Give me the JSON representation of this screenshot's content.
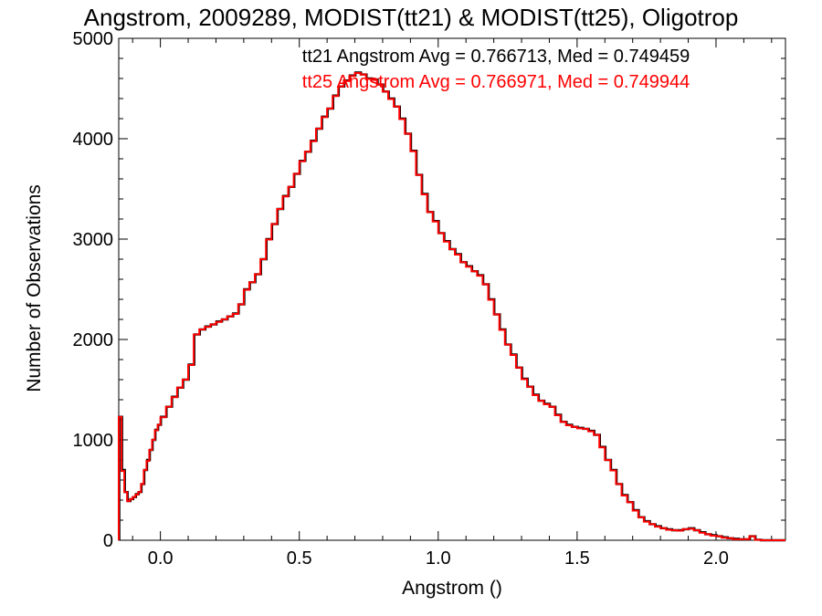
{
  "chart_data": {
    "type": "line",
    "title": "Angstrom, 2009289, MODIST(tt21) & MODIST(tt25), Oligotrop",
    "xlabel": "Angstrom ()",
    "ylabel": "Number of Observations",
    "xlim": [
      -0.15,
      2.25
    ],
    "ylim": [
      0,
      5000
    ],
    "x_ticks": [
      "0.0",
      "0.5",
      "1.0",
      "1.5",
      "2.0"
    ],
    "y_ticks": [
      "0",
      "1000",
      "2000",
      "3000",
      "4000",
      "5000"
    ],
    "grid": false,
    "annotations": [
      {
        "text": "tt21 Angstrom Avg = 0.766713, Med = 0.749459",
        "color": "#000000"
      },
      {
        "text": "tt25 Angstrom Avg = 0.766971, Med = 0.749944",
        "color": "#ff0000"
      }
    ],
    "x": [
      -0.15,
      -0.14,
      -0.13,
      -0.12,
      -0.11,
      -0.1,
      -0.09,
      -0.08,
      -0.07,
      -0.06,
      -0.05,
      -0.04,
      -0.03,
      -0.02,
      -0.01,
      0.0,
      0.02,
      0.04,
      0.06,
      0.08,
      0.1,
      0.12,
      0.14,
      0.16,
      0.18,
      0.2,
      0.22,
      0.24,
      0.26,
      0.28,
      0.3,
      0.32,
      0.34,
      0.36,
      0.38,
      0.4,
      0.42,
      0.44,
      0.46,
      0.48,
      0.5,
      0.52,
      0.54,
      0.56,
      0.58,
      0.6,
      0.62,
      0.64,
      0.66,
      0.68,
      0.7,
      0.72,
      0.74,
      0.76,
      0.78,
      0.8,
      0.82,
      0.84,
      0.86,
      0.88,
      0.9,
      0.92,
      0.94,
      0.96,
      0.98,
      1.0,
      1.02,
      1.04,
      1.06,
      1.08,
      1.1,
      1.12,
      1.14,
      1.16,
      1.18,
      1.2,
      1.22,
      1.24,
      1.26,
      1.28,
      1.3,
      1.32,
      1.34,
      1.36,
      1.38,
      1.4,
      1.42,
      1.44,
      1.46,
      1.48,
      1.5,
      1.52,
      1.54,
      1.56,
      1.58,
      1.6,
      1.62,
      1.64,
      1.66,
      1.68,
      1.7,
      1.72,
      1.74,
      1.76,
      1.78,
      1.8,
      1.82,
      1.84,
      1.86,
      1.88,
      1.9,
      1.92,
      1.94,
      1.96,
      1.98,
      2.0,
      2.02,
      2.04,
      2.06,
      2.08,
      2.1,
      2.12,
      2.14,
      2.16
    ],
    "series": [
      {
        "name": "tt21",
        "color": "#000000",
        "values": [
          1230,
          700,
          480,
          390,
          410,
          430,
          460,
          480,
          560,
          700,
          800,
          900,
          1000,
          1100,
          1150,
          1230,
          1330,
          1430,
          1520,
          1600,
          1750,
          2050,
          2100,
          2130,
          2150,
          2180,
          2200,
          2230,
          2260,
          2350,
          2500,
          2570,
          2650,
          2800,
          3000,
          3150,
          3300,
          3430,
          3520,
          3650,
          3780,
          3870,
          3980,
          4100,
          4220,
          4300,
          4430,
          4520,
          4580,
          4630,
          4660,
          4640,
          4600,
          4590,
          4540,
          4470,
          4400,
          4320,
          4200,
          4050,
          3880,
          3640,
          3450,
          3270,
          3180,
          3060,
          2980,
          2900,
          2850,
          2770,
          2730,
          2680,
          2640,
          2550,
          2400,
          2250,
          2100,
          1950,
          1850,
          1720,
          1610,
          1530,
          1450,
          1390,
          1360,
          1330,
          1250,
          1180,
          1150,
          1130,
          1120,
          1110,
          1090,
          1050,
          930,
          800,
          700,
          560,
          450,
          380,
          300,
          230,
          190,
          160,
          140,
          120,
          110,
          100,
          100,
          110,
          120,
          100,
          80,
          60,
          50,
          40,
          30,
          20,
          15,
          10,
          10,
          40,
          5,
          0
        ]
      },
      {
        "name": "tt25",
        "color": "#ff0000",
        "values": [
          1230,
          690,
          480,
          390,
          410,
          430,
          455,
          480,
          560,
          700,
          790,
          900,
          1000,
          1095,
          1150,
          1225,
          1330,
          1425,
          1520,
          1600,
          1745,
          2050,
          2100,
          2125,
          2150,
          2175,
          2200,
          2230,
          2255,
          2350,
          2495,
          2570,
          2650,
          2800,
          2995,
          3150,
          3300,
          3425,
          3520,
          3650,
          3775,
          3870,
          3975,
          4100,
          4215,
          4300,
          4425,
          4520,
          4575,
          4625,
          4655,
          4640,
          4595,
          4585,
          4540,
          4470,
          4395,
          4320,
          4195,
          4050,
          3875,
          3640,
          3445,
          3270,
          3175,
          3060,
          2975,
          2900,
          2845,
          2770,
          2725,
          2680,
          2635,
          2550,
          2395,
          2250,
          2095,
          1950,
          1845,
          1720,
          1605,
          1530,
          1445,
          1390,
          1355,
          1330,
          1245,
          1180,
          1145,
          1130,
          1115,
          1110,
          1085,
          1050,
          925,
          800,
          695,
          560,
          445,
          380,
          295,
          230,
          185,
          160,
          135,
          120,
          105,
          100,
          95,
          110,
          115,
          100,
          75,
          60,
          45,
          40,
          25,
          20,
          10,
          10,
          10,
          40,
          5,
          0
        ]
      }
    ]
  }
}
